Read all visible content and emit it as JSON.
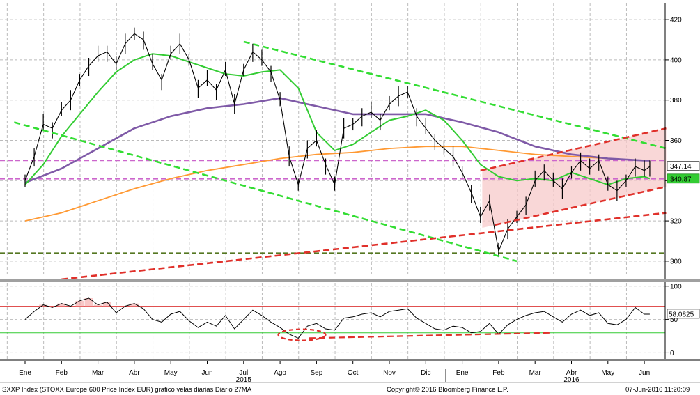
{
  "footer": {
    "left": "SXXP Index (STOXX Europe 600 Price Index EUR) grafico velas diarias  Diario 27MA",
    "center": "Copyright© 2016 Bloomberg Finance L.P.",
    "right": "07-Jun-2016 11:20:09"
  },
  "colors": {
    "price": "#000000",
    "ma_short": "#33cc33",
    "ma_mid": "#7f5aa7",
    "ma_long": "#ff9933",
    "trend_green": "#33dd33",
    "trend_red": "#e0302a",
    "level_magenta": "#cc66cc",
    "support_olive": "#557722",
    "channel_fill": "#f7c9c9",
    "rsi_line": "#000000",
    "rsi_overbought": "#e05050",
    "rsi_oversold": "#33cc33"
  },
  "chart_data": [
    {
      "type": "line",
      "title": "",
      "ylim": [
        292,
        428
      ],
      "y_ticks": [
        300,
        320,
        340,
        360,
        380,
        400,
        420
      ],
      "x_months": [
        "Ene",
        "Feb",
        "Mar",
        "Abr",
        "May",
        "Jun",
        "Jul",
        "Ago",
        "Sep",
        "Oct",
        "Nov",
        "Dic",
        "Ene",
        "Feb",
        "Mar",
        "Abr",
        "May",
        "Jun"
      ],
      "x_month_index": [
        0,
        1,
        2,
        3,
        4,
        5,
        6,
        7,
        8,
        9,
        10,
        11,
        12,
        13,
        14,
        15,
        16,
        17
      ],
      "years": [
        {
          "label": "2015",
          "month_index": 6
        },
        {
          "label": "2016",
          "month_index": 15
        }
      ],
      "last_price": "347.14",
      "level_label": "340.87",
      "series": [
        {
          "role": "price",
          "x": [
            0,
            0.25,
            0.5,
            0.75,
            1.0,
            1.25,
            1.5,
            1.75,
            2.0,
            2.25,
            2.5,
            2.75,
            3.0,
            3.25,
            3.5,
            3.75,
            4.0,
            4.25,
            4.5,
            4.75,
            5.0,
            5.25,
            5.5,
            5.75,
            6.0,
            6.25,
            6.5,
            6.75,
            7.0,
            7.25,
            7.5,
            7.75,
            8.0,
            8.25,
            8.5,
            8.75,
            9.0,
            9.25,
            9.5,
            9.75,
            10.0,
            10.25,
            10.5,
            10.75,
            11.0,
            11.25,
            11.5,
            11.75,
            12.0,
            12.25,
            12.5,
            12.75,
            13.0,
            13.25,
            13.5,
            13.75,
            14.0,
            14.25,
            14.5,
            14.75,
            15.0,
            15.25,
            15.5,
            15.75,
            16.0,
            16.25,
            16.5,
            16.75,
            17.0,
            17.15
          ],
          "values": [
            340,
            352,
            368,
            366,
            375,
            380,
            390,
            397,
            402,
            404,
            398,
            408,
            413,
            410,
            398,
            390,
            403,
            408,
            400,
            386,
            390,
            385,
            395,
            378,
            395,
            404,
            400,
            394,
            380,
            352,
            338,
            356,
            360,
            348,
            338,
            366,
            368,
            372,
            374,
            370,
            378,
            382,
            384,
            372,
            366,
            360,
            356,
            352,
            344,
            334,
            322,
            330,
            305,
            316,
            322,
            328,
            340,
            345,
            340,
            336,
            344,
            350,
            346,
            350,
            338,
            335,
            340,
            347,
            345,
            347
          ]
        },
        {
          "role": "ma_short",
          "x": [
            0,
            0.5,
            1.0,
            1.5,
            2.0,
            2.5,
            3.0,
            3.5,
            4.0,
            4.5,
            5.0,
            5.5,
            6.0,
            6.5,
            7.0,
            7.5,
            8.0,
            8.5,
            9.0,
            9.5,
            10.0,
            10.5,
            11.0,
            11.5,
            12.0,
            12.5,
            13.0,
            13.5,
            14.0,
            14.5,
            15.0,
            15.5,
            16.0,
            16.5,
            17.0,
            17.15
          ],
          "values": [
            338,
            348,
            362,
            373,
            384,
            394,
            400,
            403,
            402,
            399,
            396,
            393,
            392,
            394,
            395,
            386,
            364,
            355,
            358,
            364,
            370,
            372,
            375,
            370,
            360,
            348,
            342,
            340,
            341,
            340,
            344,
            341,
            338,
            341,
            342,
            341
          ]
        },
        {
          "role": "ma_mid",
          "x": [
            0,
            1,
            2,
            3,
            4,
            5,
            6,
            7,
            8,
            9,
            10,
            11,
            12,
            13,
            14,
            15,
            16,
            17,
            17.15
          ],
          "values": [
            339,
            346,
            356,
            366,
            372,
            376,
            378,
            381,
            377,
            373,
            373,
            373,
            369,
            364,
            357,
            353,
            351,
            350,
            350
          ]
        },
        {
          "role": "ma_long",
          "x": [
            0,
            1,
            2,
            3,
            4,
            5,
            6,
            7,
            8,
            9,
            10,
            11,
            12,
            13,
            14,
            15,
            16,
            17,
            17.15
          ],
          "values": [
            320,
            324,
            330,
            336,
            341,
            345,
            348,
            351,
            353,
            354,
            356,
            357,
            357,
            355,
            353,
            352,
            351,
            350,
            350
          ]
        }
      ],
      "annotations": [
        {
          "kind": "trendline",
          "style": "dashed",
          "color": "trend_green",
          "x1": 6.0,
          "y1": 409,
          "x2": 17.6,
          "y2": 356
        },
        {
          "kind": "trendline",
          "style": "dashed",
          "color": "trend_green",
          "x1": -0.3,
          "y1": 369,
          "x2": 13.5,
          "y2": 300
        },
        {
          "kind": "trendline",
          "style": "dashed",
          "color": "trend_red",
          "x1": 1.0,
          "y1": 291,
          "x2": 17.6,
          "y2": 324
        },
        {
          "kind": "trendline",
          "style": "dashed",
          "color": "trend_red",
          "x1": 12.5,
          "y1": 345,
          "x2": 17.6,
          "y2": 366
        },
        {
          "kind": "trendline",
          "style": "dashed",
          "color": "trend_red",
          "x1": 12.9,
          "y1": 318,
          "x2": 17.6,
          "y2": 337
        },
        {
          "kind": "hline",
          "style": "dashed",
          "color": "level_magenta",
          "y": 350
        },
        {
          "kind": "hline",
          "style": "dashed",
          "color": "level_magenta",
          "y": 340.87
        },
        {
          "kind": "hline",
          "style": "dashed",
          "color": "support_olive",
          "y": 304
        }
      ]
    },
    {
      "type": "line",
      "title": "",
      "ylim": [
        -10,
        105
      ],
      "y_ticks": [
        0,
        50,
        100
      ],
      "last_value": "58.0825",
      "overbought": 70,
      "oversold": 30,
      "series": [
        {
          "role": "rsi",
          "x": [
            0,
            0.25,
            0.5,
            0.75,
            1.0,
            1.25,
            1.5,
            1.75,
            2.0,
            2.25,
            2.5,
            2.75,
            3.0,
            3.25,
            3.5,
            3.75,
            4.0,
            4.25,
            4.5,
            4.75,
            5.0,
            5.25,
            5.5,
            5.75,
            6.0,
            6.25,
            6.5,
            6.75,
            7.0,
            7.25,
            7.5,
            7.75,
            8.0,
            8.25,
            8.5,
            8.75,
            9.0,
            9.25,
            9.5,
            9.75,
            10.0,
            10.25,
            10.5,
            10.75,
            11.0,
            11.25,
            11.5,
            11.75,
            12.0,
            12.25,
            12.5,
            12.75,
            13.0,
            13.25,
            13.5,
            13.75,
            14.0,
            14.25,
            14.5,
            14.75,
            15.0,
            15.25,
            15.5,
            15.75,
            16.0,
            16.25,
            16.5,
            16.75,
            17.0,
            17.15
          ],
          "values": [
            50,
            62,
            72,
            68,
            74,
            70,
            78,
            82,
            72,
            76,
            60,
            70,
            74,
            66,
            50,
            46,
            58,
            62,
            48,
            38,
            46,
            40,
            56,
            36,
            50,
            64,
            56,
            46,
            38,
            28,
            22,
            40,
            44,
            36,
            34,
            52,
            54,
            58,
            60,
            54,
            62,
            64,
            66,
            52,
            44,
            36,
            34,
            40,
            38,
            30,
            32,
            44,
            28,
            42,
            50,
            56,
            60,
            62,
            54,
            46,
            58,
            64,
            56,
            60,
            44,
            42,
            50,
            68,
            58,
            58
          ]
        }
      ],
      "annotations": [
        {
          "kind": "ellipse",
          "style": "dashed",
          "color": "trend_red",
          "x": 7.6,
          "y": 27
        },
        {
          "kind": "trendline",
          "style": "dashed",
          "color": "trend_red",
          "x1": 7.8,
          "y1": 22,
          "x2": 14.4,
          "y2": 30
        }
      ]
    }
  ]
}
